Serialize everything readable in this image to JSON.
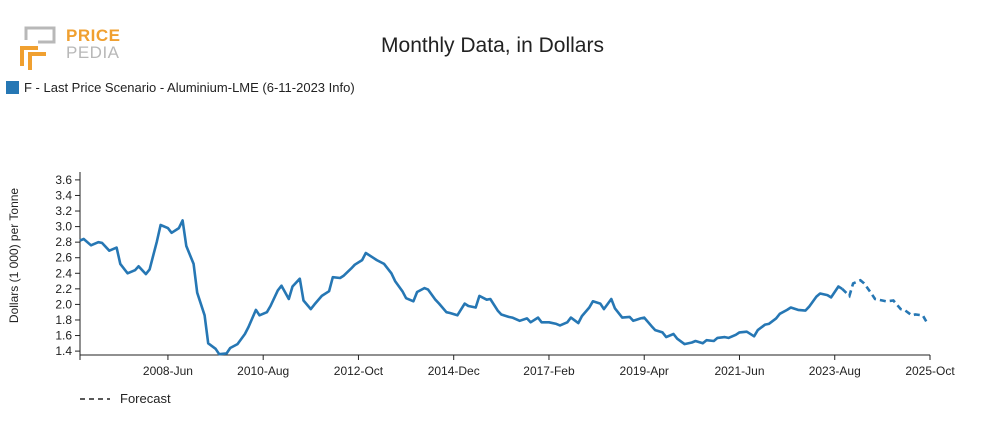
{
  "logo": {
    "line1": "PRICE",
    "line2": "PEDIA"
  },
  "colors": {
    "series": "#2677b4",
    "logo_orange": "#f0a030",
    "logo_gray": "#b8b8b8"
  },
  "chart_data": {
    "type": "line",
    "title": "Monthly Data, in Dollars",
    "ylabel": "Dollars (1 000) per Tonne",
    "xlabel": "",
    "ylim": [
      1.35,
      3.65
    ],
    "y_ticks": [
      1.4,
      1.6,
      1.8,
      2.0,
      2.2,
      2.4,
      2.6,
      2.8,
      3.0,
      3.2,
      3.4,
      3.6
    ],
    "xlim": [
      "2006-06",
      "2025-10"
    ],
    "x_ticks": [
      "2008-Jun",
      "2010-Aug",
      "2012-Oct",
      "2014-Dec",
      "2017-Feb",
      "2019-Apr",
      "2021-Jun",
      "2023-Aug",
      "2025-Oct"
    ],
    "legend_placement": "top-left",
    "grid": false,
    "series": [
      {
        "name": "F - Last Price Scenario - Aluminium-LME (6-11-2023 Info)",
        "style": "solid",
        "points": [
          [
            "2006-06",
            2.82
          ],
          [
            "2006-07",
            2.84
          ],
          [
            "2006-09",
            2.76
          ],
          [
            "2006-11",
            2.8
          ],
          [
            "2006-12",
            2.79
          ],
          [
            "2007-02",
            2.69
          ],
          [
            "2007-04",
            2.73
          ],
          [
            "2007-05",
            2.52
          ],
          [
            "2007-07",
            2.4
          ],
          [
            "2007-09",
            2.44
          ],
          [
            "2007-10",
            2.49
          ],
          [
            "2007-12",
            2.39
          ],
          [
            "2008-01",
            2.45
          ],
          [
            "2008-03",
            2.81
          ],
          [
            "2008-04",
            3.02
          ],
          [
            "2008-06",
            2.98
          ],
          [
            "2008-07",
            2.92
          ],
          [
            "2008-09",
            2.98
          ],
          [
            "2008-10",
            3.08
          ],
          [
            "2008-11",
            2.75
          ],
          [
            "2009-01",
            2.52
          ],
          [
            "2009-02",
            2.15
          ],
          [
            "2009-04",
            1.86
          ],
          [
            "2009-05",
            1.5
          ],
          [
            "2009-07",
            1.43
          ],
          [
            "2009-08",
            1.36
          ],
          [
            "2009-10",
            1.37
          ],
          [
            "2009-11",
            1.44
          ],
          [
            "2010-01",
            1.49
          ],
          [
            "2010-03",
            1.62
          ],
          [
            "2010-04",
            1.71
          ],
          [
            "2010-06",
            1.93
          ],
          [
            "2010-07",
            1.86
          ],
          [
            "2010-09",
            1.9
          ],
          [
            "2010-10",
            1.98
          ],
          [
            "2010-12",
            2.18
          ],
          [
            "2011-01",
            2.24
          ],
          [
            "2011-03",
            2.07
          ],
          [
            "2011-04",
            2.23
          ],
          [
            "2011-06",
            2.33
          ],
          [
            "2011-07",
            2.05
          ],
          [
            "2011-09",
            1.94
          ],
          [
            "2011-10",
            2.0
          ],
          [
            "2011-12",
            2.11
          ],
          [
            "2012-02",
            2.17
          ],
          [
            "2012-03",
            2.35
          ],
          [
            "2012-05",
            2.34
          ],
          [
            "2012-06",
            2.37
          ],
          [
            "2012-08",
            2.46
          ],
          [
            "2012-09",
            2.51
          ],
          [
            "2012-11",
            2.57
          ],
          [
            "2012-12",
            2.66
          ],
          [
            "2013-02",
            2.6
          ],
          [
            "2013-03",
            2.57
          ],
          [
            "2013-05",
            2.52
          ],
          [
            "2013-07",
            2.4
          ],
          [
            "2013-08",
            2.3
          ],
          [
            "2013-10",
            2.17
          ],
          [
            "2013-11",
            2.08
          ],
          [
            "2014-01",
            2.04
          ],
          [
            "2014-02",
            2.16
          ],
          [
            "2014-04",
            2.21
          ],
          [
            "2014-05",
            2.19
          ],
          [
            "2014-07",
            2.06
          ],
          [
            "2014-08",
            2.01
          ],
          [
            "2014-10",
            1.9
          ],
          [
            "2014-11",
            1.89
          ],
          [
            "2015-01",
            1.86
          ],
          [
            "2015-03",
            2.01
          ],
          [
            "2015-04",
            1.98
          ],
          [
            "2015-06",
            1.96
          ],
          [
            "2015-07",
            2.11
          ],
          [
            "2015-09",
            2.06
          ],
          [
            "2015-10",
            2.07
          ],
          [
            "2015-12",
            1.92
          ],
          [
            "2016-01",
            1.87
          ],
          [
            "2016-03",
            1.84
          ],
          [
            "2016-04",
            1.83
          ],
          [
            "2016-06",
            1.79
          ],
          [
            "2016-08",
            1.82
          ],
          [
            "2016-09",
            1.77
          ],
          [
            "2016-11",
            1.83
          ],
          [
            "2016-12",
            1.77
          ],
          [
            "2017-02",
            1.77
          ],
          [
            "2017-04",
            1.75
          ],
          [
            "2017-05",
            1.73
          ],
          [
            "2017-07",
            1.77
          ],
          [
            "2017-08",
            1.83
          ],
          [
            "2017-10",
            1.76
          ],
          [
            "2017-11",
            1.85
          ],
          [
            "2018-01",
            1.96
          ],
          [
            "2018-02",
            2.04
          ],
          [
            "2018-04",
            2.01
          ],
          [
            "2018-05",
            1.94
          ],
          [
            "2018-07",
            2.07
          ],
          [
            "2018-08",
            1.95
          ],
          [
            "2018-10",
            1.83
          ],
          [
            "2018-12",
            1.84
          ],
          [
            "2019-01",
            1.79
          ],
          [
            "2019-03",
            1.82
          ],
          [
            "2019-04",
            1.83
          ],
          [
            "2019-06",
            1.72
          ],
          [
            "2019-07",
            1.67
          ],
          [
            "2019-09",
            1.64
          ],
          [
            "2019-10",
            1.58
          ],
          [
            "2019-12",
            1.62
          ],
          [
            "2020-01",
            1.56
          ],
          [
            "2020-03",
            1.49
          ],
          [
            "2020-05",
            1.51
          ],
          [
            "2020-06",
            1.53
          ],
          [
            "2020-08",
            1.5
          ],
          [
            "2020-09",
            1.54
          ],
          [
            "2020-11",
            1.53
          ],
          [
            "2020-12",
            1.57
          ],
          [
            "2021-02",
            1.58
          ],
          [
            "2021-03",
            1.57
          ],
          [
            "2021-05",
            1.61
          ],
          [
            "2021-06",
            1.64
          ],
          [
            "2021-08",
            1.65
          ],
          [
            "2021-10",
            1.59
          ],
          [
            "2021-11",
            1.67
          ],
          [
            "2022-01",
            1.74
          ],
          [
            "2022-02",
            1.75
          ],
          [
            "2022-04",
            1.82
          ],
          [
            "2022-05",
            1.88
          ],
          [
            "2022-07",
            1.93
          ],
          [
            "2022-08",
            1.96
          ],
          [
            "2022-10",
            1.93
          ],
          [
            "2022-12",
            1.92
          ],
          [
            "2023-01",
            1.97
          ],
          [
            "2023-03",
            2.1
          ],
          [
            "2023-04",
            2.14
          ],
          [
            "2023-06",
            2.12
          ],
          [
            "2023-07",
            2.09
          ],
          [
            "2023-09",
            2.23
          ],
          [
            "2023-10",
            2.2
          ],
          [
            "2023-12",
            2.11
          ],
          [
            "2024-01",
            2.27
          ],
          [
            "2024-03",
            2.31
          ],
          [
            "2024-04",
            2.27
          ],
          [
            "2024-06",
            2.14
          ],
          [
            "2024-07",
            2.07
          ],
          [
            "2024-09",
            2.05
          ],
          [
            "2024-10",
            2.04
          ],
          [
            "2024-12",
            2.05
          ],
          [
            "2025-02",
            1.94
          ],
          [
            "2025-03",
            1.93
          ],
          [
            "2025-05",
            1.86
          ],
          [
            "2025-06",
            1.87
          ],
          [
            "2025-08",
            1.86
          ],
          [
            "2025-09",
            1.78
          ],
          [
            "2025-10",
            1.78
          ]
        ]
      },
      {
        "name": "Forecast",
        "style": "dashed",
        "points": []
      }
    ]
  }
}
